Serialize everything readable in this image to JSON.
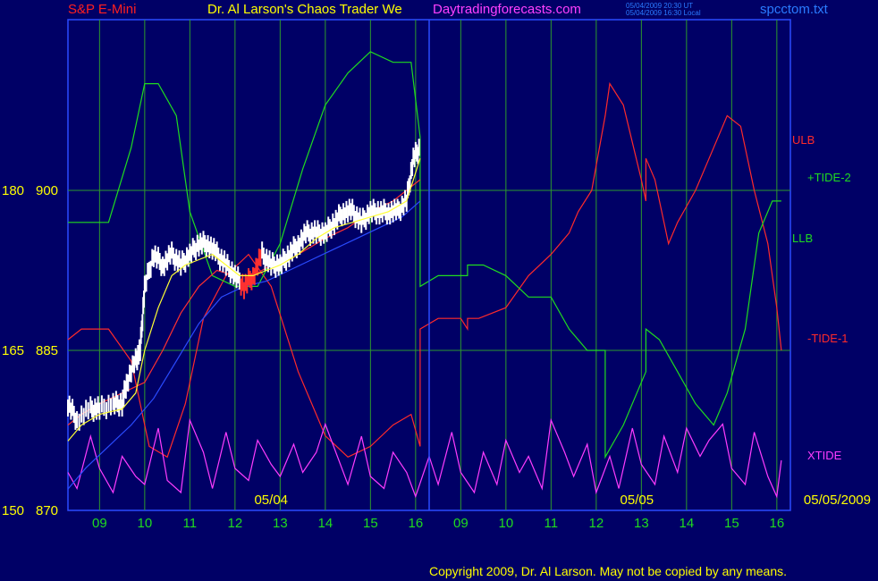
{
  "header": {
    "instrument": "S&P E-Mini",
    "title": "Dr. Al Larson's Chaos Trader We",
    "website": "Daytradingforecasts.com",
    "timestamp_ut": "05/04/2009 20:30 UT",
    "timestamp_local": "05/04/2009 16:30 Local",
    "filename": "spcctom.txt"
  },
  "footer": {
    "copyright": "Copyright 2009, Dr. Al Larson. May not be copied by any means."
  },
  "colors": {
    "background": "#000066",
    "grid": "#2d9a2d",
    "price": "#ffffff",
    "ulb": "#ff2a2a",
    "llb": "#1fdc1f",
    "xtide": "#ff3cff",
    "ma_yellow": "#ffff33",
    "ma_red": "#ff3030",
    "ma_blue": "#2a4bff"
  },
  "chart_data": {
    "type": "line",
    "title": "S&P E-Mini",
    "left_axis": {
      "labels_outer": [
        "180",
        "165",
        "150"
      ],
      "labels_inner": [
        "900",
        "885",
        "870"
      ],
      "values": [
        900,
        885,
        870
      ],
      "range": [
        870,
        916
      ]
    },
    "x_axis": {
      "tick_labels": [
        "09",
        "10",
        "11",
        "12",
        "13",
        "14",
        "15",
        "16",
        "09",
        "10",
        "11",
        "12",
        "13",
        "14",
        "15",
        "16"
      ],
      "date_labels": [
        "05/04",
        "05/05",
        "05/05/2009"
      ],
      "range_hours": [
        8.3,
        24.3
      ]
    },
    "grid": true,
    "right_labels": [
      {
        "text": "ULB",
        "color": "#ff2a2a"
      },
      {
        "text": "+TIDE-2",
        "color": "#1fdc1f"
      },
      {
        "text": "LLB",
        "color": "#1fdc1f"
      },
      {
        "text": "-TIDE-1",
        "color": "#ff2a2a"
      },
      {
        "text": "XTIDE",
        "color": "#ff3cff"
      }
    ],
    "series": [
      {
        "name": "ULB",
        "color": "#ff2a2a",
        "x": [
          8.3,
          8.6,
          9.2,
          9.7,
          10.1,
          10.5,
          10.9,
          11.3,
          11.8,
          12.3,
          12.8,
          13.4,
          14.0,
          14.5,
          15.0,
          15.5,
          15.9,
          16.1,
          16.1,
          16.5,
          17.0,
          17.15,
          17.15,
          17.4,
          18.0,
          18.5,
          19.0,
          19.4,
          19.6,
          19.9,
          20.2,
          20.3,
          20.3,
          20.6,
          21.0,
          21.1,
          21.1,
          21.3,
          21.6,
          21.8,
          22.2,
          22.6,
          22.9,
          23.2,
          23.5,
          23.8,
          24.0,
          24.1
        ],
        "y": [
          886,
          887,
          887,
          884,
          876,
          875,
          880,
          888,
          892,
          894,
          891,
          883,
          877,
          875,
          876,
          878,
          879,
          876,
          887,
          888,
          888,
          887,
          888,
          888,
          889,
          892,
          894,
          896,
          898,
          900,
          907,
          910,
          910,
          908,
          901,
          899,
          903,
          901,
          895,
          897,
          900,
          904,
          907,
          906,
          900,
          895,
          889,
          885
        ]
      },
      {
        "name": "LLB",
        "color": "#1fdc1f",
        "x": [
          8.3,
          8.6,
          9.2,
          9.7,
          10.0,
          10.3,
          10.7,
          11.0,
          11.5,
          12.0,
          12.5,
          13.0,
          13.5,
          14.0,
          14.5,
          15.0,
          15.5,
          15.9,
          16.1,
          16.1,
          16.5,
          17.0,
          17.15,
          17.15,
          17.5,
          18.0,
          18.5,
          19.0,
          19.4,
          19.8,
          20.2,
          20.2,
          20.6,
          21.0,
          21.1,
          21.1,
          21.4,
          21.8,
          22.2,
          22.6,
          22.9,
          23.3,
          23.6,
          23.9,
          24.1
        ],
        "y": [
          897,
          897,
          897,
          904,
          910,
          910,
          907,
          898,
          892,
          891,
          891,
          895,
          902,
          908,
          911,
          913,
          912,
          912,
          905,
          891,
          892,
          892,
          892,
          893,
          893,
          892,
          890,
          890,
          887,
          885,
          885,
          875,
          878,
          882,
          883,
          887,
          886,
          883,
          880,
          878,
          881,
          887,
          896,
          899,
          899
        ]
      },
      {
        "name": "XTIDE",
        "color": "#ff3cff",
        "x": [
          8.3,
          8.5,
          8.8,
          9.0,
          9.3,
          9.5,
          9.8,
          10.0,
          10.3,
          10.5,
          10.8,
          11.0,
          11.3,
          11.5,
          11.8,
          12.0,
          12.3,
          12.5,
          12.8,
          13.0,
          13.3,
          13.5,
          13.8,
          14.0,
          14.3,
          14.5,
          14.8,
          15.0,
          15.3,
          15.5,
          15.8,
          16.0,
          16.3,
          16.5,
          16.8,
          17.0,
          17.3,
          17.5,
          17.8,
          18.0,
          18.3,
          18.5,
          18.8,
          19.0,
          19.3,
          19.5,
          19.8,
          20.0,
          20.3,
          20.5,
          20.8,
          21.0,
          21.3,
          21.5,
          21.8,
          22.0,
          22.3,
          22.5,
          22.8,
          23.0,
          23.3,
          23.5,
          23.8,
          24.0,
          24.1
        ],
        "y": [
          0.35,
          0.15,
          0.8,
          0.4,
          0.1,
          0.55,
          0.3,
          0.2,
          0.9,
          0.25,
          0.1,
          1.0,
          0.6,
          0.15,
          0.85,
          0.4,
          0.25,
          0.75,
          0.45,
          0.3,
          0.7,
          0.35,
          0.6,
          0.95,
          0.5,
          0.2,
          0.8,
          0.3,
          0.15,
          0.6,
          0.35,
          0.05,
          0.55,
          0.2,
          0.85,
          0.35,
          0.1,
          0.6,
          0.2,
          0.75,
          0.35,
          0.55,
          0.15,
          1.0,
          0.6,
          0.3,
          0.7,
          0.1,
          0.55,
          0.15,
          0.9,
          0.45,
          0.2,
          0.8,
          0.35,
          0.9,
          0.55,
          0.75,
          0.95,
          0.4,
          0.2,
          0.85,
          0.3,
          0.05,
          0.5
        ]
      },
      {
        "name": "price",
        "color": "#ffffff",
        "x": [
          8.3,
          8.5,
          8.8,
          9.0,
          9.3,
          9.5,
          9.6,
          9.8,
          9.9,
          10.0,
          10.2,
          10.4,
          10.6,
          10.8,
          11.0,
          11.2,
          11.4,
          11.6,
          11.8,
          12.0,
          12.2,
          12.4,
          12.6,
          12.8,
          13.0,
          13.2,
          13.4,
          13.6,
          13.8,
          14.0,
          14.2,
          14.4,
          14.6,
          14.8,
          15.0,
          15.2,
          15.4,
          15.6,
          15.8,
          15.95,
          16.1
        ],
        "y": [
          880,
          878.5,
          879.5,
          879.5,
          880,
          880,
          882,
          884,
          885,
          891,
          894,
          893,
          894,
          893,
          894,
          895,
          895,
          894,
          893,
          892,
          891,
          892,
          894,
          893,
          893,
          894,
          895,
          896,
          896,
          896,
          897,
          898,
          898,
          897,
          898,
          898,
          898,
          898,
          899,
          903,
          904
        ]
      },
      {
        "name": "ma-yellow",
        "color": "#ffff33",
        "x": [
          8.3,
          8.6,
          9.0,
          9.5,
          9.8,
          10.0,
          10.3,
          10.6,
          10.9,
          11.2,
          11.5,
          11.8,
          12.1,
          12.4,
          12.7,
          13.0,
          13.4,
          13.8,
          14.2,
          14.6,
          15.0,
          15.4,
          15.8,
          16.1
        ],
        "y": [
          876.5,
          878,
          879,
          879.5,
          881,
          885,
          889,
          892,
          893,
          893.5,
          894,
          893,
          892,
          892,
          892.5,
          893,
          894,
          895.5,
          896.5,
          897,
          897.5,
          898,
          899,
          903
        ]
      },
      {
        "name": "ma-red",
        "color": "#ff3030",
        "x": [
          8.3,
          8.6,
          9.0,
          9.5,
          10.0,
          10.4,
          10.8,
          11.2,
          11.6,
          12.0,
          12.4,
          12.8,
          13.2,
          13.6,
          14.0,
          14.5,
          15.0,
          15.5,
          16.1
        ],
        "y": [
          878,
          879,
          880,
          881,
          882,
          885,
          888.5,
          891,
          892.5,
          892,
          892,
          893,
          893.5,
          894.5,
          895.5,
          896.5,
          898,
          899,
          901
        ]
      },
      {
        "name": "ma-blue",
        "color": "#2a4bff",
        "x": [
          8.3,
          8.7,
          9.2,
          9.7,
          10.2,
          10.7,
          11.2,
          11.7,
          12.2,
          12.7,
          13.2,
          13.7,
          14.2,
          14.7,
          15.2,
          15.7,
          16.1
        ],
        "y": [
          872,
          874,
          876,
          878,
          880.5,
          884,
          887.5,
          890,
          891,
          891.5,
          892.5,
          893.5,
          894.5,
          895.5,
          896.5,
          897.5,
          899
        ]
      }
    ]
  }
}
